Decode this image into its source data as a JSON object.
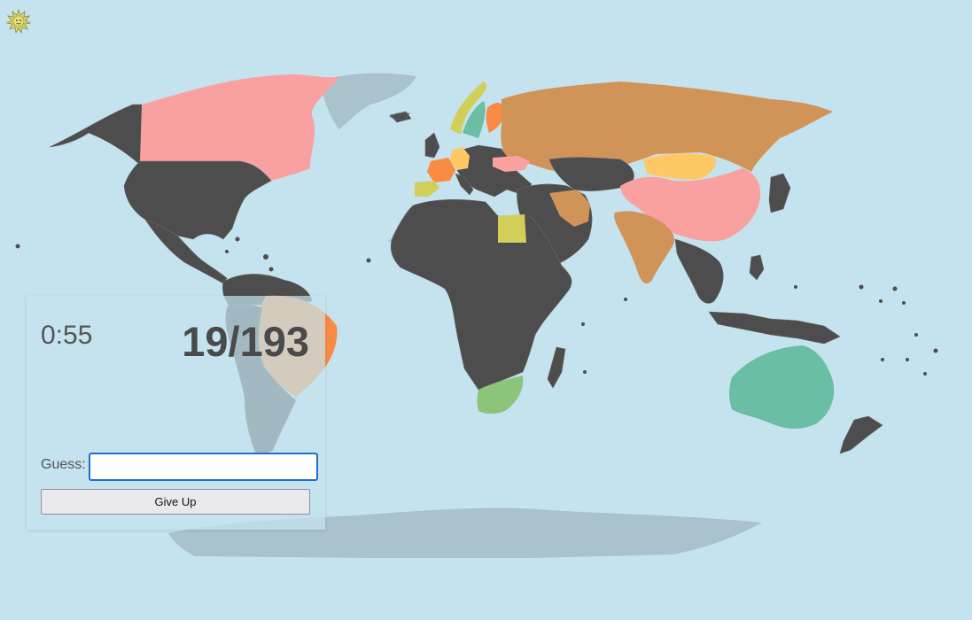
{
  "colors": {
    "ocean": "#c5e3ef",
    "unguessed": "#4d4d4d",
    "unknown_land": "#a9c2cc",
    "guessed": [
      "#f9a1a1",
      "#d19458",
      "#69bea3",
      "#fec965",
      "#f98b45",
      "#d1cf5a",
      "#8cc57a",
      "#fbb8a0"
    ]
  },
  "game": {
    "timer": "0:55",
    "score": "19/193",
    "guess_label": "Guess:",
    "guess_value": "",
    "give_up_label": "Give Up"
  },
  "logo": {
    "icon": "sun-icon"
  }
}
